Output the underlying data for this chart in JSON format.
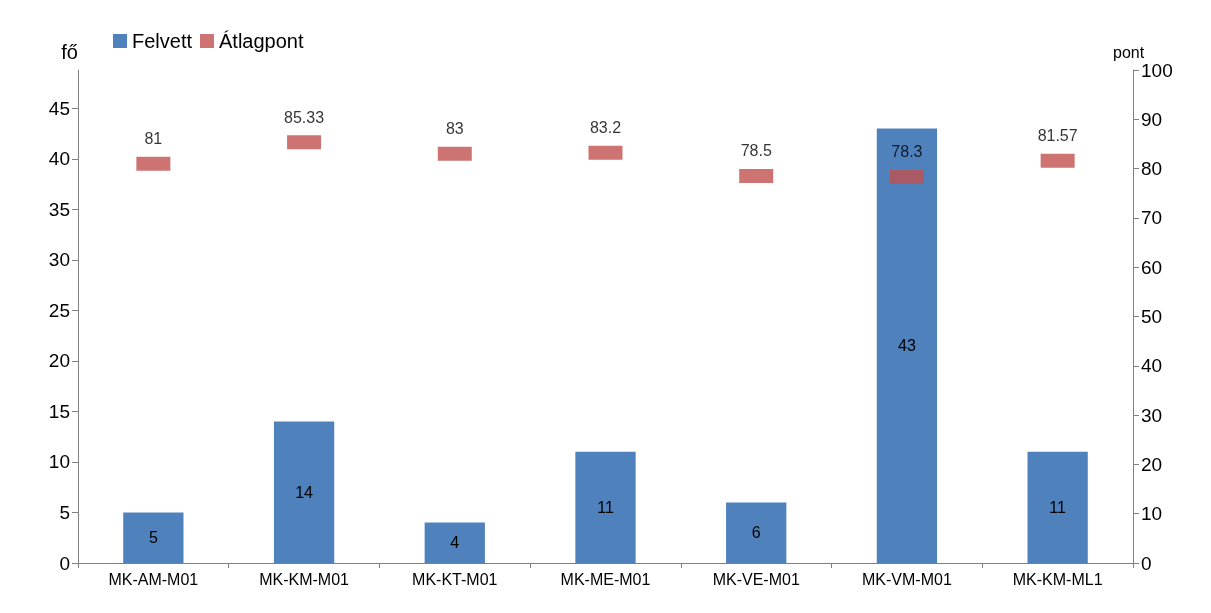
{
  "chart_data": {
    "type": "bar",
    "ylabel": "fő",
    "y2label": "pont",
    "categories": [
      "MK-AM-M01",
      "MK-KM-M01",
      "MK-KT-M01",
      "MK-ME-M01",
      "MK-VE-M01",
      "MK-VM-M01",
      "MK-KM-ML1"
    ],
    "series": [
      {
        "name": "Felvett",
        "color": "#4f81bd",
        "values": [
          5,
          14,
          4,
          11,
          6,
          43,
          11
        ]
      },
      {
        "name": "Átlagpont",
        "type": "scatter",
        "axis": "y2",
        "marker": "square",
        "color": "#c0504d",
        "values": [
          81,
          85.33,
          83,
          83.2,
          78.5,
          78.3,
          81.57
        ]
      }
    ],
    "data_labels": true,
    "legend": "top left",
    "ylim": [
      0,
      48.8
    ],
    "yticks": [
      0,
      5,
      10,
      15,
      20,
      25,
      30,
      35,
      40,
      45
    ],
    "y2lim": [
      0,
      100
    ],
    "y2ticks": [
      0,
      10,
      20,
      30,
      40,
      50,
      60,
      70,
      80,
      90,
      100
    ]
  }
}
